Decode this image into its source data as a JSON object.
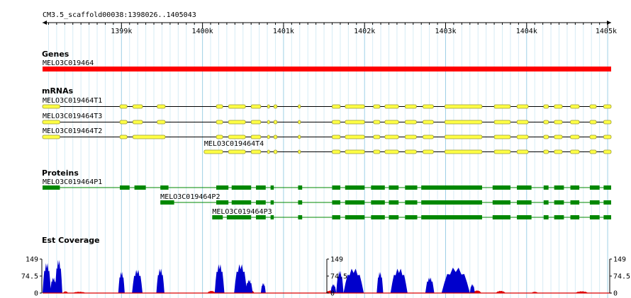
{
  "ruler": {
    "region": "CM3.5_scaffold00038:1398026..1405043",
    "tick_labels": [
      "1399k",
      "1400k",
      "1401k",
      "1402k",
      "1403k",
      "1404k",
      "1405k"
    ]
  },
  "tracks": {
    "genes": {
      "title": "Genes",
      "features": [
        {
          "name": "MELO3C019464",
          "start": 1398026,
          "end": 1405043
        }
      ]
    },
    "mrnas": {
      "title": "mRNAs",
      "features": [
        {
          "name": "MELO3C019464T1",
          "start": 1398026,
          "end": 1405043,
          "exons": [
            [
              1398026,
              1398240
            ],
            [
              1398980,
              1399070
            ],
            [
              1399140,
              1399260
            ],
            [
              1399440,
              1399540
            ],
            [
              1400170,
              1400250
            ],
            [
              1400320,
              1400530
            ],
            [
              1400600,
              1400720
            ],
            [
              1400800,
              1400830
            ],
            [
              1400880,
              1400920
            ],
            [
              1401180,
              1401210
            ],
            [
              1401600,
              1401700
            ],
            [
              1401760,
              1402000
            ],
            [
              1402110,
              1402190
            ],
            [
              1402250,
              1402420
            ],
            [
              1402500,
              1402640
            ],
            [
              1402720,
              1402850
            ],
            [
              1402990,
              1403450
            ],
            [
              1403600,
              1403800
            ],
            [
              1403880,
              1404020
            ],
            [
              1404210,
              1404270
            ],
            [
              1404340,
              1404440
            ],
            [
              1404540,
              1404650
            ],
            [
              1404780,
              1404860
            ],
            [
              1404950,
              1405043
            ]
          ]
        },
        {
          "name": "MELO3C019464T3",
          "start": 1398026,
          "end": 1405043,
          "exons": [
            [
              1398026,
              1398240
            ],
            [
              1398980,
              1399070
            ],
            [
              1399140,
              1399260
            ],
            [
              1399440,
              1399540
            ],
            [
              1400170,
              1400250
            ],
            [
              1400320,
              1400530
            ],
            [
              1400600,
              1400720
            ],
            [
              1400800,
              1400830
            ],
            [
              1400880,
              1400920
            ],
            [
              1401180,
              1401210
            ],
            [
              1401600,
              1401700
            ],
            [
              1401760,
              1402000
            ],
            [
              1402110,
              1402190
            ],
            [
              1402250,
              1402420
            ],
            [
              1402500,
              1402640
            ],
            [
              1402720,
              1402850
            ],
            [
              1402990,
              1403450
            ],
            [
              1403600,
              1403800
            ],
            [
              1403880,
              1404020
            ],
            [
              1404210,
              1404270
            ],
            [
              1404340,
              1404440
            ],
            [
              1404540,
              1404650
            ],
            [
              1404780,
              1404860
            ],
            [
              1404950,
              1405043
            ]
          ]
        },
        {
          "name": "MELO3C019464T2",
          "start": 1398026,
          "end": 1405043,
          "exons": [
            [
              1398026,
              1398240
            ],
            [
              1398980,
              1399070
            ],
            [
              1399140,
              1399540
            ],
            [
              1400170,
              1400250
            ],
            [
              1400320,
              1400530
            ],
            [
              1400600,
              1400720
            ],
            [
              1400800,
              1400830
            ],
            [
              1400880,
              1400920
            ],
            [
              1401180,
              1401210
            ],
            [
              1401600,
              1401700
            ],
            [
              1401760,
              1402000
            ],
            [
              1402110,
              1402190
            ],
            [
              1402250,
              1402420
            ],
            [
              1402500,
              1402640
            ],
            [
              1402720,
              1402850
            ],
            [
              1402990,
              1403450
            ],
            [
              1403600,
              1403800
            ],
            [
              1403880,
              1404020
            ],
            [
              1404210,
              1404270
            ],
            [
              1404340,
              1404440
            ],
            [
              1404540,
              1404650
            ],
            [
              1404780,
              1404860
            ],
            [
              1404950,
              1405043
            ]
          ]
        },
        {
          "name": "MELO3C019464T4",
          "start": 1400020,
          "end": 1405043,
          "exons": [
            [
              1400020,
              1400250
            ],
            [
              1400320,
              1400530
            ],
            [
              1400600,
              1400720
            ],
            [
              1400800,
              1400830
            ],
            [
              1400880,
              1400920
            ],
            [
              1401180,
              1401210
            ],
            [
              1401600,
              1401700
            ],
            [
              1401760,
              1402000
            ],
            [
              1402110,
              1402190
            ],
            [
              1402250,
              1402420
            ],
            [
              1402500,
              1402640
            ],
            [
              1402720,
              1402850
            ],
            [
              1402990,
              1403450
            ],
            [
              1403600,
              1403800
            ],
            [
              1403880,
              1404020
            ],
            [
              1404210,
              1404270
            ],
            [
              1404340,
              1404440
            ],
            [
              1404540,
              1404650
            ],
            [
              1404780,
              1404860
            ],
            [
              1404950,
              1405043
            ]
          ]
        }
      ]
    },
    "proteins": {
      "title": "Proteins",
      "features": [
        {
          "name": "MELO3C019464P1",
          "start": 1398026,
          "end": 1405043,
          "blocks": [
            [
              1398026,
              1398240
            ],
            [
              1398980,
              1399100
            ],
            [
              1399160,
              1399300
            ],
            [
              1399480,
              1399580
            ],
            [
              1400170,
              1400320
            ],
            [
              1400360,
              1400600
            ],
            [
              1400660,
              1400780
            ],
            [
              1400840,
              1400880
            ],
            [
              1401180,
              1401230
            ],
            [
              1401600,
              1401700
            ],
            [
              1401760,
              1402000
            ],
            [
              1402080,
              1402250
            ],
            [
              1402300,
              1402420
            ],
            [
              1402500,
              1402650
            ],
            [
              1402700,
              1403450
            ],
            [
              1403580,
              1403800
            ],
            [
              1403880,
              1404060
            ],
            [
              1404210,
              1404270
            ],
            [
              1404340,
              1404460
            ],
            [
              1404540,
              1404650
            ],
            [
              1404780,
              1404900
            ],
            [
              1404950,
              1405043
            ]
          ]
        },
        {
          "name": "MELO3C019464P2",
          "start": 1399480,
          "end": 1405043,
          "blocks": [
            [
              1399480,
              1399650
            ],
            [
              1400170,
              1400320
            ],
            [
              1400360,
              1400600
            ],
            [
              1400660,
              1400780
            ],
            [
              1400840,
              1400880
            ],
            [
              1401180,
              1401230
            ],
            [
              1401600,
              1401700
            ],
            [
              1401760,
              1402000
            ],
            [
              1402080,
              1402250
            ],
            [
              1402300,
              1402420
            ],
            [
              1402500,
              1402650
            ],
            [
              1402700,
              1403450
            ],
            [
              1403580,
              1403800
            ],
            [
              1403880,
              1404060
            ],
            [
              1404210,
              1404270
            ],
            [
              1404340,
              1404460
            ],
            [
              1404540,
              1404650
            ],
            [
              1404780,
              1404900
            ],
            [
              1404950,
              1405043
            ]
          ]
        },
        {
          "name": "MELO3C019464P3",
          "start": 1400120,
          "end": 1405043,
          "blocks": [
            [
              1400120,
              1400250
            ],
            [
              1400300,
              1400600
            ],
            [
              1400660,
              1400780
            ],
            [
              1400840,
              1400880
            ],
            [
              1401180,
              1401230
            ],
            [
              1401600,
              1401700
            ],
            [
              1401760,
              1402000
            ],
            [
              1402080,
              1402250
            ],
            [
              1402300,
              1402420
            ],
            [
              1402500,
              1402650
            ],
            [
              1402700,
              1403450
            ],
            [
              1403580,
              1403800
            ],
            [
              1403880,
              1404060
            ],
            [
              1404210,
              1404270
            ],
            [
              1404340,
              1404460
            ],
            [
              1404540,
              1404650
            ],
            [
              1404780,
              1404900
            ],
            [
              1404950,
              1405043
            ]
          ]
        }
      ]
    },
    "coverage": {
      "title": "Est Coverage",
      "y_labels": [
        "149",
        "74.5",
        "0"
      ],
      "max": 149,
      "colors": {
        "plus": "#0000cc",
        "minus": "#dd0000"
      },
      "peaks": [
        {
          "start": 1398026,
          "end": 1398130,
          "height": 135
        },
        {
          "start": 1398120,
          "end": 1398200,
          "height": 70
        },
        {
          "start": 1398180,
          "end": 1398270,
          "height": 150
        },
        {
          "start": 1398960,
          "end": 1399040,
          "height": 95
        },
        {
          "start": 1399130,
          "end": 1399260,
          "height": 105
        },
        {
          "start": 1399430,
          "end": 1399530,
          "height": 110
        },
        {
          "start": 1400150,
          "end": 1400270,
          "height": 130
        },
        {
          "start": 1400390,
          "end": 1400550,
          "height": 130
        },
        {
          "start": 1400530,
          "end": 1400620,
          "height": 60
        },
        {
          "start": 1400720,
          "end": 1400780,
          "height": 45
        },
        {
          "start": 1401580,
          "end": 1401650,
          "height": 40
        },
        {
          "start": 1401650,
          "end": 1401740,
          "height": 100
        },
        {
          "start": 1401740,
          "end": 1401990,
          "height": 110
        },
        {
          "start": 1402150,
          "end": 1402230,
          "height": 95
        },
        {
          "start": 1402320,
          "end": 1402530,
          "height": 110
        },
        {
          "start": 1402750,
          "end": 1402860,
          "height": 70
        },
        {
          "start": 1402950,
          "end": 1403300,
          "height": 115
        },
        {
          "start": 1403300,
          "end": 1403360,
          "height": 40
        }
      ],
      "minus_bits": [
        {
          "start": 1398280,
          "end": 1398340,
          "height": 8
        },
        {
          "start": 1398400,
          "end": 1398560,
          "height": 6
        },
        {
          "start": 1400060,
          "end": 1400160,
          "height": 10
        },
        {
          "start": 1400560,
          "end": 1400640,
          "height": 12
        },
        {
          "start": 1401520,
          "end": 1401660,
          "height": 12
        },
        {
          "start": 1403340,
          "end": 1403440,
          "height": 12
        },
        {
          "start": 1403620,
          "end": 1403740,
          "height": 10
        },
        {
          "start": 1404060,
          "end": 1404140,
          "height": 6
        },
        {
          "start": 1404600,
          "end": 1404760,
          "height": 8
        }
      ]
    }
  }
}
